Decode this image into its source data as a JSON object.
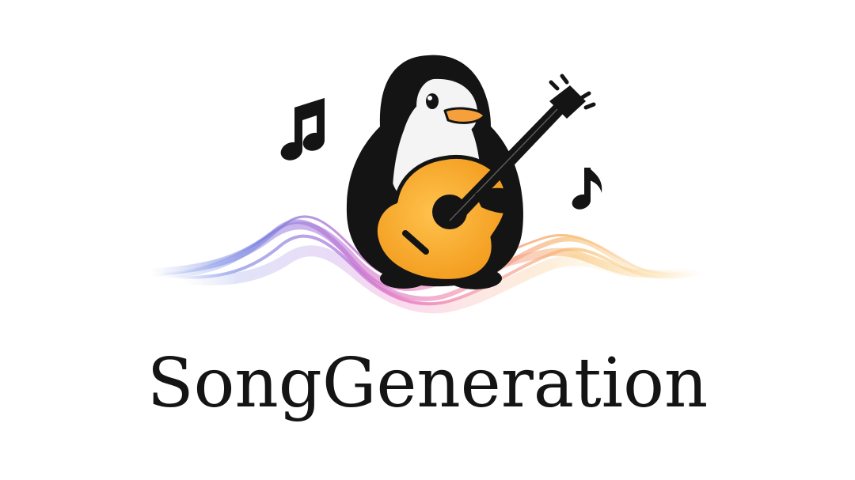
{
  "brand": {
    "name": "SongGeneration"
  },
  "logo": {
    "mascot": "penguin-icon",
    "instrument": "guitar-icon",
    "notes": [
      "music-note-double-icon",
      "music-note-single-icon"
    ],
    "wave": "sound-wave-icon"
  },
  "colors": {
    "background": "#ffffff",
    "ink": "#141414",
    "guitar_body": "#f6a623",
    "beak": "#f5a03a",
    "wave_purple": "#6a5acd",
    "wave_magenta": "#d63fb5",
    "wave_orange": "#f39a3c",
    "wave_yellow": "#f7c14a"
  }
}
